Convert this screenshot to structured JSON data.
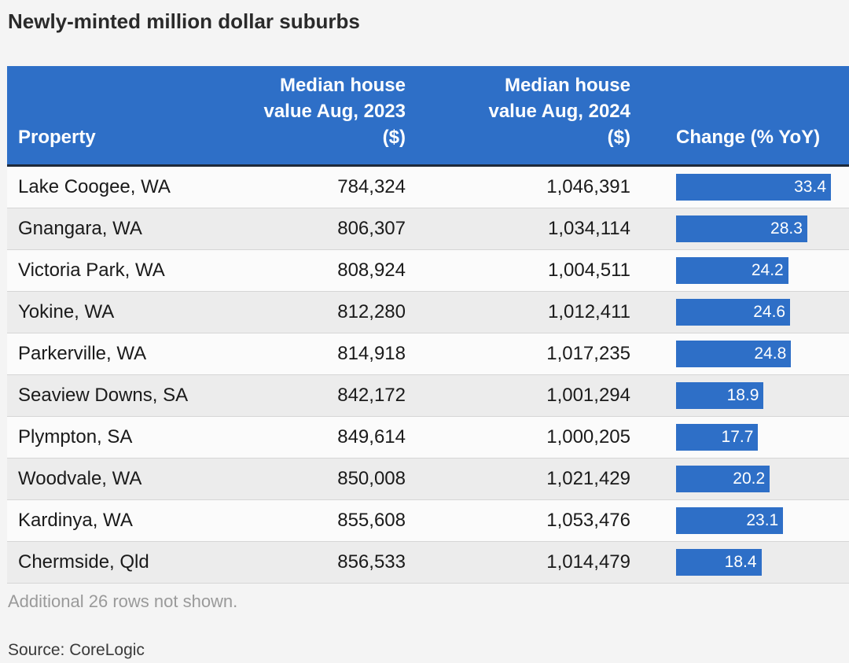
{
  "title": "Newly-minted million dollar suburbs",
  "headers": {
    "property": "Property",
    "v2023_line1": "Median house",
    "v2023_line2": "value Aug, 2023",
    "v2023_line3": "($)",
    "v2024_line1": "Median house",
    "v2024_line2": "value Aug, 2024",
    "v2024_line3": "($)",
    "change": "Change (% YoY)"
  },
  "chart_data": {
    "type": "table",
    "columns": [
      "Property",
      "Median house value Aug, 2023 ($)",
      "Median house value Aug, 2024 ($)",
      "Change (% YoY)"
    ],
    "rows": [
      {
        "property": "Lake Coogee, WA",
        "v2023": "784,324",
        "v2024": "1,046,391",
        "change": 33.4
      },
      {
        "property": "Gnangara, WA",
        "v2023": "806,307",
        "v2024": "1,034,114",
        "change": 28.3
      },
      {
        "property": "Victoria Park, WA",
        "v2023": "808,924",
        "v2024": "1,004,511",
        "change": 24.2
      },
      {
        "property": "Yokine, WA",
        "v2023": "812,280",
        "v2024": "1,012,411",
        "change": 24.6
      },
      {
        "property": "Parkerville, WA",
        "v2023": "814,918",
        "v2024": "1,017,235",
        "change": 24.8
      },
      {
        "property": "Seaview Downs, SA",
        "v2023": "842,172",
        "v2024": "1,001,294",
        "change": 18.9
      },
      {
        "property": "Plympton, SA",
        "v2023": "849,614",
        "v2024": "1,000,205",
        "change": 17.7
      },
      {
        "property": "Woodvale, WA",
        "v2023": "850,008",
        "v2024": "1,021,429",
        "change": 20.2
      },
      {
        "property": "Kardinya, WA",
        "v2023": "855,608",
        "v2024": "1,053,476",
        "change": 23.1
      },
      {
        "property": "Chermside, Qld",
        "v2023": "856,533",
        "v2024": "1,014,479",
        "change": 18.4
      }
    ],
    "bar_color": "#2e6fc7"
  },
  "note": "Additional 26 rows not shown.",
  "source": "Source: CoreLogic"
}
